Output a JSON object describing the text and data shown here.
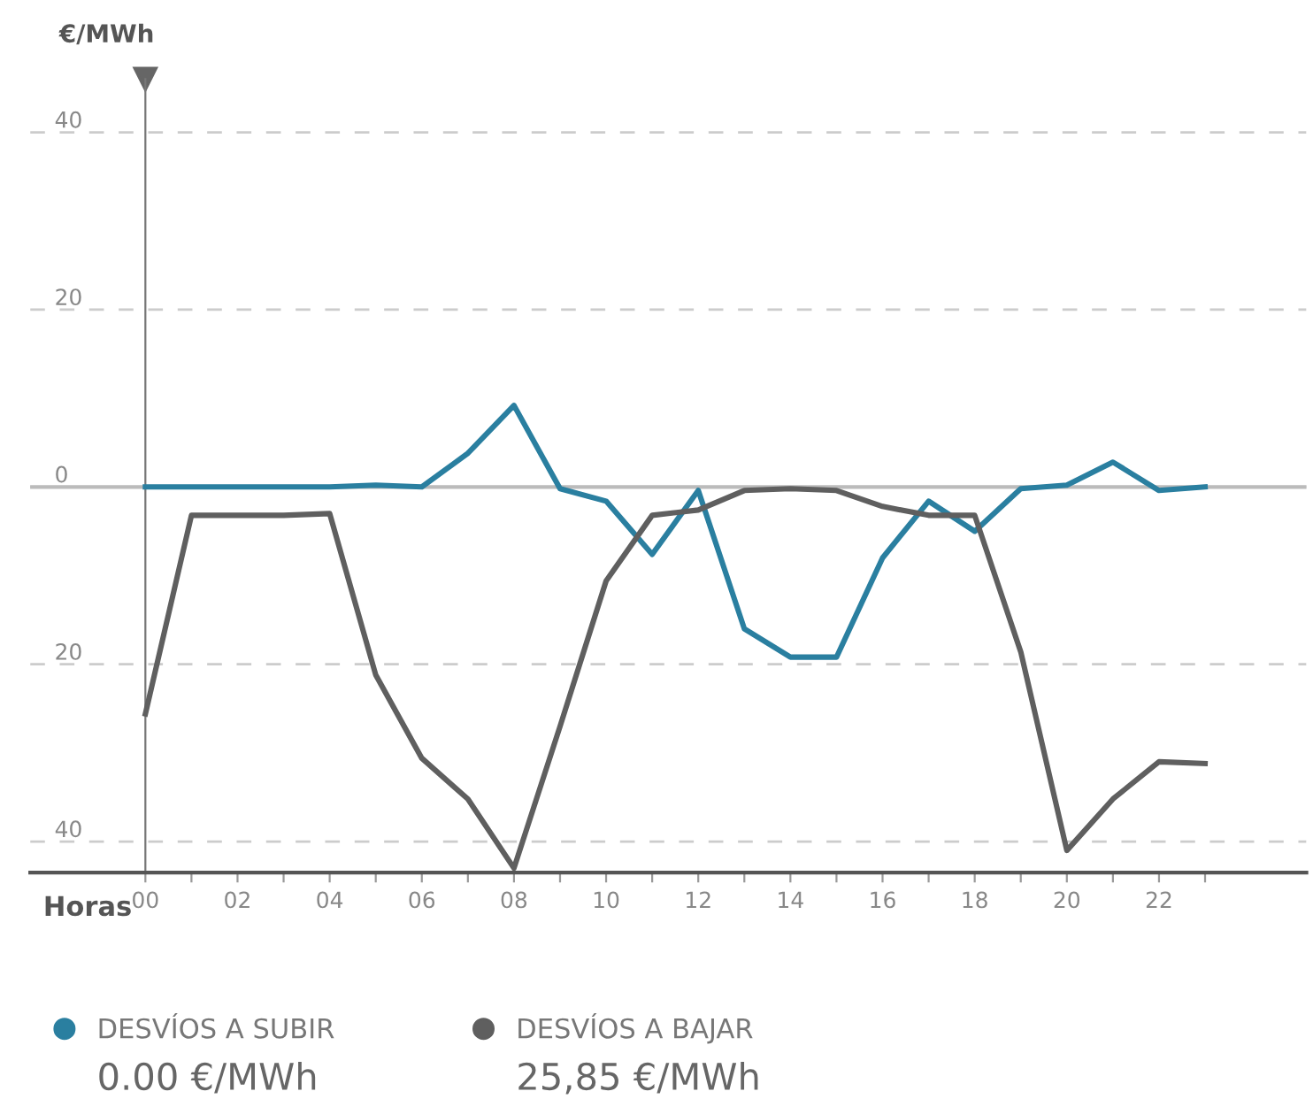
{
  "chart_data": {
    "type": "line",
    "ylabel": "€/MWh",
    "xlabel": "Horas",
    "x": [
      0,
      1,
      2,
      3,
      4,
      5,
      6,
      7,
      8,
      9,
      10,
      11,
      12,
      13,
      14,
      15,
      16,
      17,
      18,
      19,
      20,
      21,
      22,
      23
    ],
    "series": [
      {
        "name": "DESVÍOS A SUBIR",
        "color": "#2a7fa0",
        "values": [
          0,
          0,
          0,
          0,
          0,
          0.2,
          0,
          3.8,
          9.2,
          -0.2,
          -1.6,
          -7.6,
          -0.4,
          -16,
          -19.2,
          -19.2,
          -8,
          -1.6,
          -5,
          -0.2,
          0.2,
          2.8,
          -0.4,
          0
        ]
      },
      {
        "name": "DESVÍOS A BAJAR",
        "color": "#5f5f5f",
        "values": [
          -25.6,
          -3.2,
          -3.2,
          -3.2,
          -3,
          -21.2,
          -30.6,
          -35.2,
          -43,
          -27,
          -10.6,
          -3.2,
          -2.6,
          -0.4,
          -0.2,
          -0.4,
          -2.2,
          -3.2,
          -3.2,
          -18.6,
          -41,
          -35.2,
          -31,
          -31.2
        ]
      }
    ],
    "xlim": [
      -2.5,
      25.2
    ],
    "ylim": [
      -43.5,
      46
    ],
    "xticks": [
      {
        "value": 0,
        "label": "00"
      },
      {
        "value": 1,
        "label": null
      },
      {
        "value": 2,
        "label": "02"
      },
      {
        "value": 3,
        "label": null
      },
      {
        "value": 4,
        "label": "04"
      },
      {
        "value": 5,
        "label": null
      },
      {
        "value": 6,
        "label": "06"
      },
      {
        "value": 7,
        "label": null
      },
      {
        "value": 8,
        "label": "08"
      },
      {
        "value": 9,
        "label": null
      },
      {
        "value": 10,
        "label": "10"
      },
      {
        "value": 11,
        "label": null
      },
      {
        "value": 12,
        "label": "12"
      },
      {
        "value": 13,
        "label": null
      },
      {
        "value": 14,
        "label": "14"
      },
      {
        "value": 15,
        "label": null
      },
      {
        "value": 16,
        "label": "16"
      },
      {
        "value": 17,
        "label": null
      },
      {
        "value": 18,
        "label": "18"
      },
      {
        "value": 19,
        "label": null
      },
      {
        "value": 20,
        "label": "20"
      },
      {
        "value": 21,
        "label": null
      },
      {
        "value": 22,
        "label": "22"
      },
      {
        "value": 23,
        "label": null
      }
    ],
    "yticks": [
      {
        "value": -40,
        "label": "40"
      },
      {
        "value": -20,
        "label": "20"
      },
      0,
      20,
      40
    ],
    "ref_lines": [
      {
        "axis": "y",
        "value": 0,
        "color": "#bbbbbb",
        "line_style": "solid"
      }
    ],
    "grid": "y",
    "legend": "bottom",
    "marker": "none",
    "line_style": "solid",
    "annotations": [
      "0.00 €/MWh",
      "25,85 €/MWh"
    ]
  }
}
